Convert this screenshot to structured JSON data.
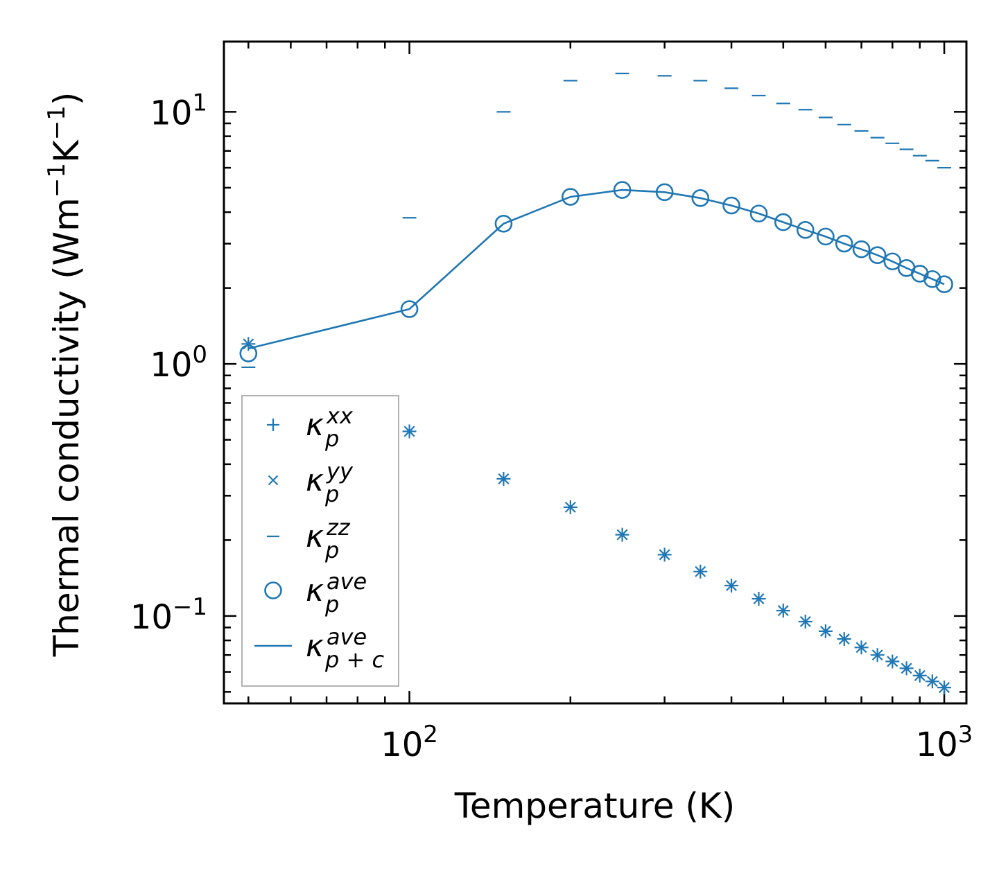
{
  "chart_data": {
    "type": "scatter",
    "xscale": "log",
    "yscale": "log",
    "xlabel": "Temperature (K)",
    "ylabel": {
      "text": "Thermal conductivity (Wm",
      "sup1": "−1",
      "mid": "K",
      "sup2": "−1",
      "end": ")"
    },
    "xlim": [
      45,
      1100
    ],
    "ylim": [
      0.045,
      19
    ],
    "xticks": [
      {
        "value": 100,
        "base": "10",
        "exp": "2"
      },
      {
        "value": 1000,
        "base": "10",
        "exp": "3"
      }
    ],
    "yticks": [
      {
        "value": 0.1,
        "base": "10",
        "exp": "−1"
      },
      {
        "value": 1,
        "base": "10",
        "exp": "0"
      },
      {
        "value": 10,
        "base": "10",
        "exp": "1"
      }
    ],
    "x": [
      50,
      100,
      150,
      200,
      250,
      300,
      350,
      400,
      450,
      500,
      550,
      600,
      650,
      700,
      750,
      800,
      850,
      900,
      950,
      1000
    ],
    "series": [
      {
        "name": "kappa_p_xx",
        "marker": "plus",
        "legend": {
          "main": "κ",
          "sup": "xx",
          "sub": "p"
        },
        "values": [
          1.2,
          0.54,
          0.35,
          0.27,
          0.21,
          0.175,
          0.15,
          0.132,
          0.117,
          0.105,
          0.095,
          0.087,
          0.081,
          0.075,
          0.07,
          0.066,
          0.062,
          0.058,
          0.055,
          0.052
        ]
      },
      {
        "name": "kappa_p_yy",
        "marker": "x",
        "legend": {
          "main": "κ",
          "sup": "yy",
          "sub": "p"
        },
        "values": [
          1.2,
          0.54,
          0.35,
          0.27,
          0.21,
          0.175,
          0.15,
          0.132,
          0.117,
          0.105,
          0.095,
          0.087,
          0.081,
          0.075,
          0.07,
          0.066,
          0.062,
          0.058,
          0.055,
          0.052
        ]
      },
      {
        "name": "kappa_p_zz",
        "marker": "hline",
        "legend": {
          "main": "κ",
          "sup": "zz",
          "sub": "p"
        },
        "values": [
          0.97,
          3.8,
          10.0,
          13.3,
          14.2,
          13.9,
          13.3,
          12.4,
          11.6,
          10.8,
          10.2,
          9.5,
          8.9,
          8.4,
          7.9,
          7.5,
          7.1,
          6.7,
          6.4,
          6.0
        ]
      },
      {
        "name": "kappa_p_ave",
        "marker": "circle",
        "legend": {
          "main": "κ",
          "sup": "ave",
          "sub": "p"
        },
        "values": [
          1.1,
          1.65,
          3.6,
          4.6,
          4.9,
          4.8,
          4.55,
          4.25,
          3.95,
          3.65,
          3.4,
          3.2,
          3.0,
          2.85,
          2.7,
          2.55,
          2.4,
          2.28,
          2.17,
          2.07
        ]
      },
      {
        "name": "kappa_p+c_ave",
        "marker": "line",
        "legend": {
          "main": "κ",
          "sup": "ave",
          "sub": "p + c"
        },
        "values": [
          1.15,
          1.65,
          3.6,
          4.6,
          4.9,
          4.8,
          4.55,
          4.25,
          3.95,
          3.65,
          3.4,
          3.2,
          3.0,
          2.85,
          2.7,
          2.55,
          2.4,
          2.28,
          2.17,
          2.07
        ]
      }
    ],
    "color": "#1f77b4",
    "legend_position": "lower-left",
    "grid": false
  }
}
